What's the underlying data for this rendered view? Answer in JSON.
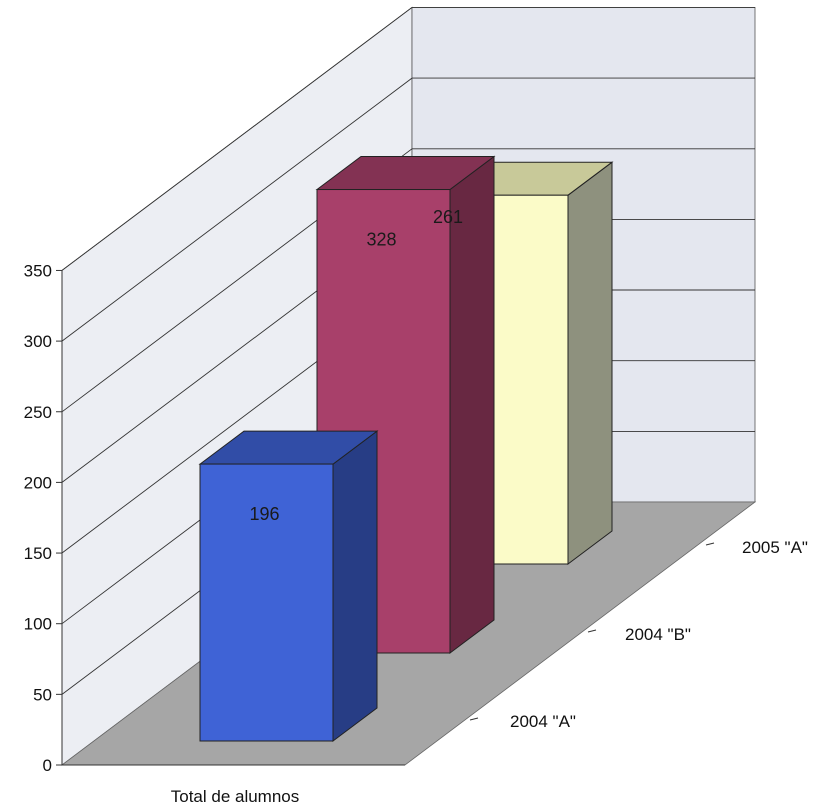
{
  "chart_data": {
    "type": "bar",
    "three_d": true,
    "categories": [
      "Total de alumnos"
    ],
    "series": [
      {
        "name": "2004 \"A\"",
        "values": [
          196
        ],
        "color": "#3f63d6"
      },
      {
        "name": "2004 \"B\"",
        "values": [
          328
        ],
        "color": "#a8406a"
      },
      {
        "name": "2005 \"A\"",
        "values": [
          261
        ],
        "color": "#fbfbc8"
      }
    ],
    "y_ticks": [
      "0",
      "50",
      "100",
      "150",
      "200",
      "250",
      "300",
      "350"
    ],
    "ylim": [
      0,
      350
    ],
    "grid": true,
    "colors": {
      "back_wall": "#e4e7ef",
      "side_wall": "#eceef3",
      "floor": "#a6a6a6",
      "gridline": "#333333"
    }
  }
}
